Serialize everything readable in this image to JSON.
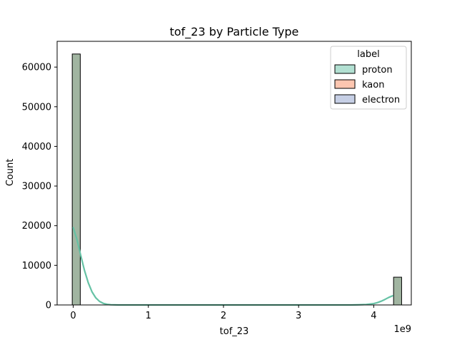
{
  "chart_data": {
    "type": "bar",
    "title": "tof_23 by Particle Type",
    "xlabel": "tof_23",
    "ylabel": "Count",
    "x_offset_label": "1e9",
    "xlim": [
      -0.2143,
      4.5
    ],
    "ylim": [
      0,
      66500
    ],
    "x_ticks": [
      0,
      1,
      2,
      3,
      4
    ],
    "y_ticks": [
      0,
      10000,
      20000,
      30000,
      40000,
      50000,
      60000
    ],
    "legend": {
      "title": "label",
      "position": "upper right",
      "entries": [
        {
          "name": "proton",
          "color": "#66c2a5"
        },
        {
          "name": "kaon",
          "color": "#fc8d62"
        },
        {
          "name": "electron",
          "color": "#8da0cb"
        }
      ]
    },
    "histogram": {
      "bin_width": 0.1069,
      "bins": [
        {
          "x_start": -0.0131,
          "count": 63300
        },
        {
          "x_start": 4.2641,
          "count": 7000
        }
      ]
    },
    "kde": {
      "name": "proton",
      "points": [
        [
          0,
          19500
        ],
        [
          0.05,
          16500
        ],
        [
          0.1,
          12500
        ],
        [
          0.15,
          8700
        ],
        [
          0.2,
          5600
        ],
        [
          0.25,
          3300
        ],
        [
          0.3,
          1800
        ],
        [
          0.35,
          900
        ],
        [
          0.4,
          400
        ],
        [
          0.45,
          160
        ],
        [
          0.5,
          60
        ],
        [
          0.6,
          0
        ],
        [
          1,
          0
        ],
        [
          2,
          0
        ],
        [
          3,
          0
        ],
        [
          3.7,
          0
        ],
        [
          3.8,
          40
        ],
        [
          3.9,
          120
        ],
        [
          4.0,
          350
        ],
        [
          4.05,
          600
        ],
        [
          4.1,
          950
        ],
        [
          4.15,
          1400
        ],
        [
          4.2,
          1900
        ],
        [
          4.25,
          2300
        ]
      ]
    }
  }
}
